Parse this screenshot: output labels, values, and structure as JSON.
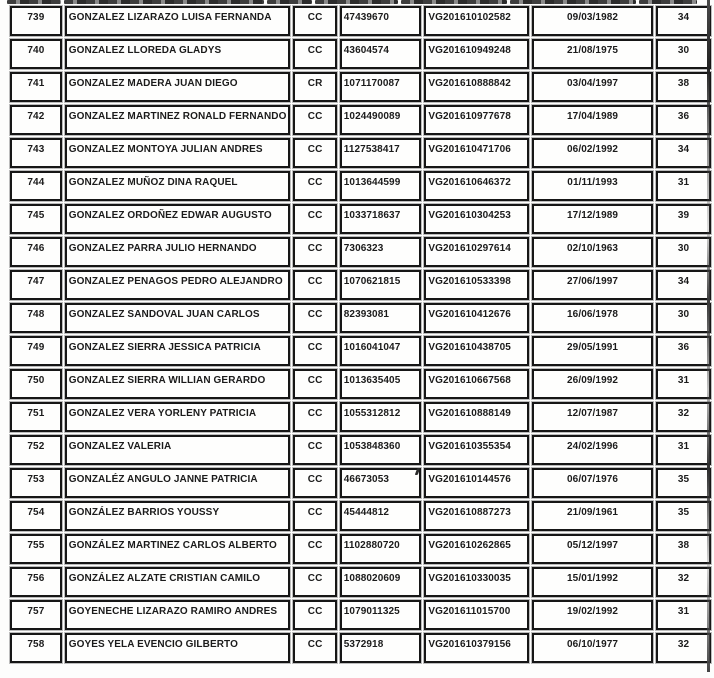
{
  "table": {
    "fields": [
      "num",
      "name",
      "doc_type",
      "doc_number",
      "code",
      "date",
      "age"
    ],
    "rows": [
      {
        "num": "739",
        "name": "GONZALEZ LIZARAZO LUISA FERNANDA",
        "doc_type": "CC",
        "doc_number": "47439670",
        "code": "VG201610102582",
        "date": "09/03/1982",
        "age": "34"
      },
      {
        "num": "740",
        "name": "GONZALEZ LLOREDA GLADYS",
        "doc_type": "CC",
        "doc_number": "43604574",
        "code": "VG201610949248",
        "date": "21/08/1975",
        "age": "30"
      },
      {
        "num": "741",
        "name": "GONZALEZ MADERA JUAN DIEGO",
        "doc_type": "CR",
        "doc_number": "1071170087",
        "code": "VG201610888842",
        "date": "03/04/1997",
        "age": "38"
      },
      {
        "num": "742",
        "name": "GONZALEZ MARTINEZ RONALD FERNANDO",
        "doc_type": "CC",
        "doc_number": "1024490089",
        "code": "VG201610977678",
        "date": "17/04/1989",
        "age": "36"
      },
      {
        "num": "743",
        "name": "GONZALEZ MONTOYA JULIAN ANDRES",
        "doc_type": "CC",
        "doc_number": "1127538417",
        "code": "VG201610471706",
        "date": "06/02/1992",
        "age": "34"
      },
      {
        "num": "744",
        "name": "GONZALEZ MUÑOZ DINA RAQUEL",
        "doc_type": "CC",
        "doc_number": "1013644599",
        "code": "VG201610646372",
        "date": "01/11/1993",
        "age": "31"
      },
      {
        "num": "745",
        "name": "GONZALEZ ORDOÑEZ EDWAR AUGUSTO",
        "doc_type": "CC",
        "doc_number": "1033718637",
        "code": "VG201610304253",
        "date": "17/12/1989",
        "age": "39"
      },
      {
        "num": "746",
        "name": "GONZALEZ PARRA JULIO HERNANDO",
        "doc_type": "CC",
        "doc_number": "7306323",
        "code": "VG201610297614",
        "date": "02/10/1963",
        "age": "30"
      },
      {
        "num": "747",
        "name": "GONZALEZ PENAGOS PEDRO ALEJANDRO",
        "doc_type": "CC",
        "doc_number": "1070621815",
        "code": "VG201610533398",
        "date": "27/06/1997",
        "age": "34"
      },
      {
        "num": "748",
        "name": "GONZALEZ SANDOVAL JUAN CARLOS",
        "doc_type": "CC",
        "doc_number": "82393081",
        "code": "VG201610412676",
        "date": "16/06/1978",
        "age": "30"
      },
      {
        "num": "749",
        "name": "GONZALEZ SIERRA JESSICA PATRICIA",
        "doc_type": "CC",
        "doc_number": "1016041047",
        "code": "VG201610438705",
        "date": "29/05/1991",
        "age": "36"
      },
      {
        "num": "750",
        "name": "GONZALEZ SIERRA WILLIAN GERARDO",
        "doc_type": "CC",
        "doc_number": "1013635405",
        "code": "VG201610667568",
        "date": "26/09/1992",
        "age": "31"
      },
      {
        "num": "751",
        "name": "GONZALEZ VERA YORLENY PATRICIA",
        "doc_type": "CC",
        "doc_number": "1055312812",
        "code": "VG201610888149",
        "date": "12/07/1987",
        "age": "32"
      },
      {
        "num": "752",
        "name": "GONZALEZ  VALERIA",
        "doc_type": "CC",
        "doc_number": "1053848360",
        "code": "VG201610355354",
        "date": "24/02/1996",
        "age": "31"
      },
      {
        "num": "753",
        "name": "GONZALÉZ ANGULO JANNE PATRICIA",
        "doc_type": "CC",
        "doc_number": "46673053",
        "code": "VG201610144576",
        "date": "06/07/1976",
        "age": "35"
      },
      {
        "num": "754",
        "name": "GONZÁLEZ BARRIOS YOUSSY",
        "doc_type": "CC",
        "doc_number": "45444812",
        "code": "VG201610887273",
        "date": "21/09/1961",
        "age": "35"
      },
      {
        "num": "755",
        "name": "GONZÁLEZ MARTINEZ CARLOS ALBERTO",
        "doc_type": "CC",
        "doc_number": "1102880720",
        "code": "VG201610262865",
        "date": "05/12/1997",
        "age": "38"
      },
      {
        "num": "756",
        "name": "GONZÁLEZ ALZATE CRISTIAN CAMILO",
        "doc_type": "CC",
        "doc_number": "1088020609",
        "code": "VG201610330035",
        "date": "15/01/1992",
        "age": "32"
      },
      {
        "num": "757",
        "name": "GOYENECHE LIZARAZO RAMIRO ANDRES",
        "doc_type": "CC",
        "doc_number": "1079011325",
        "code": "VG201611015700",
        "date": "19/02/1992",
        "age": "31"
      },
      {
        "num": "758",
        "name": "GOYES YELA EVENCIO GILBERTO",
        "doc_type": "CC",
        "doc_number": "5372918",
        "code": "VG201610379156",
        "date": "06/10/1977",
        "age": "32"
      }
    ]
  }
}
